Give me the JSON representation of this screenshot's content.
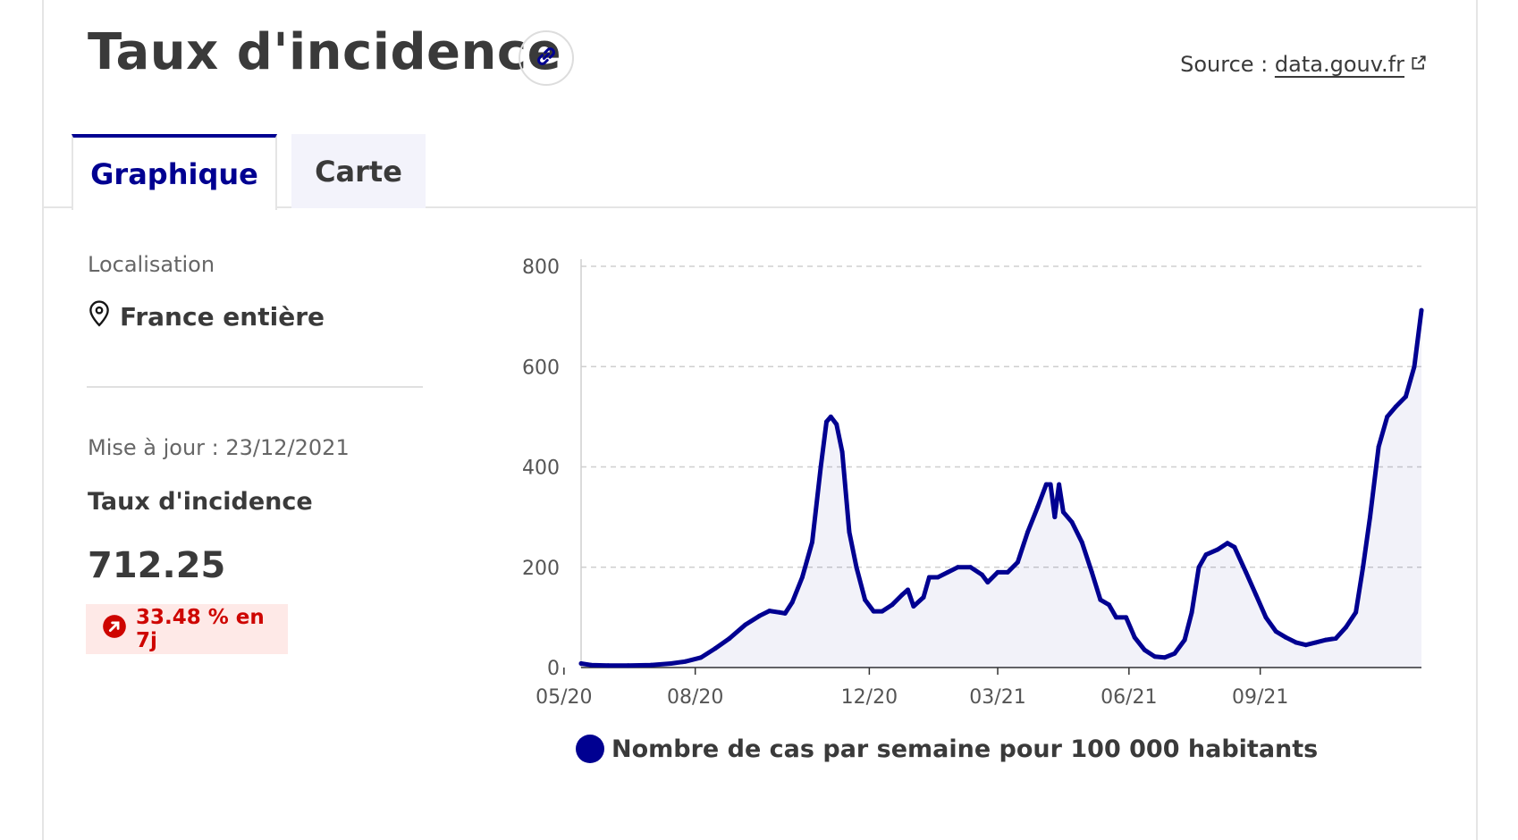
{
  "header": {
    "title": "Taux d'incidence",
    "source_label": "Source :",
    "source_link": "data.gouv.fr"
  },
  "tabs": [
    {
      "label": "Graphique",
      "active": true
    },
    {
      "label": "Carte",
      "active": false
    }
  ],
  "sidebar": {
    "location_label": "Localisation",
    "location_value": "France entière",
    "updated": "Mise à jour : 23/12/2021",
    "indicator_name": "Taux d'incidence",
    "indicator_value": "712.25",
    "change_text": "33.48 % en 7j"
  },
  "icons": [
    "link-icon",
    "external-link-icon",
    "map-pin-icon",
    "trend-up-icon"
  ],
  "colors": {
    "accent": "#000091",
    "alert": "#ce0500",
    "alert_bg": "#fee9e7"
  },
  "chart_data": {
    "type": "area",
    "xlabel": "",
    "ylabel": "",
    "ylim": [
      0,
      800
    ],
    "yticks": [
      "0",
      "200",
      "400",
      "600",
      "800"
    ],
    "xticks": [
      "05/20",
      "08/20",
      "12/20",
      "03/21",
      "06/21",
      "09/21"
    ],
    "grid": true,
    "legend_position": "bottom",
    "series": [
      {
        "name": "Nombre de cas par semaine pour 100 000 habitants",
        "color": "#000091",
        "points": [
          [
            "2020-05-13",
            8
          ],
          [
            "2020-05-20",
            5
          ],
          [
            "2020-06-01",
            4
          ],
          [
            "2020-06-15",
            4
          ],
          [
            "2020-07-01",
            5
          ],
          [
            "2020-07-15",
            8
          ],
          [
            "2020-07-25",
            12
          ],
          [
            "2020-08-05",
            20
          ],
          [
            "2020-08-15",
            38
          ],
          [
            "2020-08-25",
            58
          ],
          [
            "2020-09-05",
            85
          ],
          [
            "2020-09-15",
            103
          ],
          [
            "2020-09-22",
            113
          ],
          [
            "2020-09-29",
            110
          ],
          [
            "2020-10-03",
            108
          ],
          [
            "2020-10-08",
            130
          ],
          [
            "2020-10-15",
            180
          ],
          [
            "2020-10-22",
            250
          ],
          [
            "2020-10-28",
            400
          ],
          [
            "2020-11-01",
            490
          ],
          [
            "2020-11-04",
            500
          ],
          [
            "2020-11-08",
            485
          ],
          [
            "2020-11-12",
            430
          ],
          [
            "2020-11-17",
            270
          ],
          [
            "2020-11-22",
            200
          ],
          [
            "2020-11-28",
            135
          ],
          [
            "2020-12-04",
            112
          ],
          [
            "2020-12-10",
            112
          ],
          [
            "2020-12-17",
            125
          ],
          [
            "2020-12-24",
            145
          ],
          [
            "2020-12-28",
            155
          ],
          [
            "2021-01-01",
            122
          ],
          [
            "2021-01-08",
            140
          ],
          [
            "2021-01-12",
            180
          ],
          [
            "2021-01-18",
            180
          ],
          [
            "2021-01-25",
            190
          ],
          [
            "2021-02-01",
            200
          ],
          [
            "2021-02-10",
            200
          ],
          [
            "2021-02-18",
            185
          ],
          [
            "2021-02-22",
            170
          ],
          [
            "2021-03-01",
            190
          ],
          [
            "2021-03-08",
            190
          ],
          [
            "2021-03-15",
            210
          ],
          [
            "2021-03-22",
            270
          ],
          [
            "2021-03-29",
            320
          ],
          [
            "2021-04-04",
            365
          ],
          [
            "2021-04-07",
            365
          ],
          [
            "2021-04-10",
            300
          ],
          [
            "2021-04-13",
            365
          ],
          [
            "2021-04-16",
            310
          ],
          [
            "2021-04-22",
            290
          ],
          [
            "2021-04-29",
            250
          ],
          [
            "2021-05-06",
            190
          ],
          [
            "2021-05-12",
            135
          ],
          [
            "2021-05-18",
            125
          ],
          [
            "2021-05-23",
            100
          ],
          [
            "2021-05-30",
            100
          ],
          [
            "2021-06-05",
            60
          ],
          [
            "2021-06-12",
            35
          ],
          [
            "2021-06-19",
            22
          ],
          [
            "2021-06-26",
            20
          ],
          [
            "2021-07-03",
            28
          ],
          [
            "2021-07-10",
            55
          ],
          [
            "2021-07-15",
            110
          ],
          [
            "2021-07-20",
            200
          ],
          [
            "2021-07-25",
            225
          ],
          [
            "2021-08-02",
            235
          ],
          [
            "2021-08-09",
            248
          ],
          [
            "2021-08-14",
            240
          ],
          [
            "2021-08-22",
            190
          ],
          [
            "2021-08-29",
            145
          ],
          [
            "2021-09-05",
            100
          ],
          [
            "2021-09-12",
            72
          ],
          [
            "2021-09-19",
            60
          ],
          [
            "2021-09-26",
            50
          ],
          [
            "2021-10-03",
            45
          ],
          [
            "2021-10-10",
            50
          ],
          [
            "2021-10-17",
            55
          ],
          [
            "2021-10-24",
            58
          ],
          [
            "2021-10-31",
            80
          ],
          [
            "2021-11-07",
            110
          ],
          [
            "2021-11-12",
            200
          ],
          [
            "2021-11-17",
            300
          ],
          [
            "2021-11-23",
            440
          ],
          [
            "2021-11-29",
            500
          ],
          [
            "2021-12-05",
            520
          ],
          [
            "2021-12-12",
            540
          ],
          [
            "2021-12-18",
            600
          ],
          [
            "2021-12-23",
            712.25
          ]
        ]
      }
    ]
  }
}
